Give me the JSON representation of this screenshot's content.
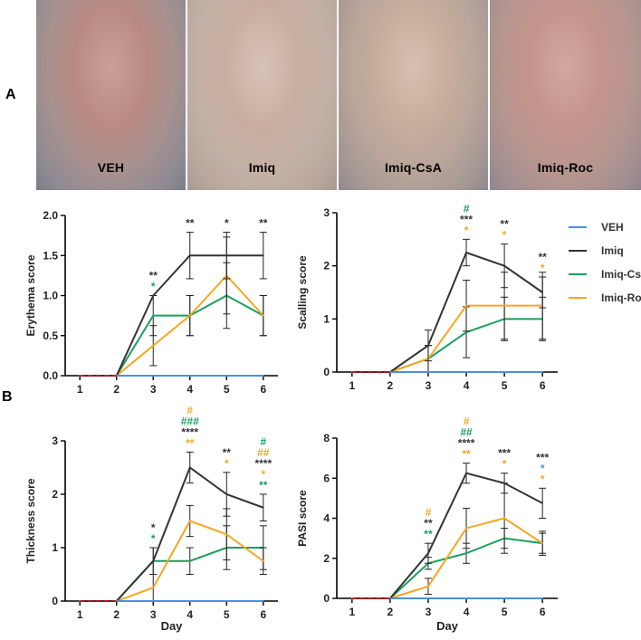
{
  "panel_labels": {
    "a": "A",
    "b": "B"
  },
  "photos": [
    {
      "caption": "VEH"
    },
    {
      "caption": "Imiq"
    },
    {
      "caption": "Imiq-CsA"
    },
    {
      "caption": "Imiq-Roc"
    }
  ],
  "legend": [
    {
      "name": "VEH",
      "color": "#4a90e2"
    },
    {
      "name": "Imiq",
      "color": "#333333"
    },
    {
      "name": "Imiq-CsA",
      "color": "#19a05a"
    },
    {
      "name": "Imiq-Roc",
      "color": "#f5a623"
    }
  ],
  "chart_data": [
    {
      "id": "erythema",
      "type": "line",
      "title": "",
      "xlabel": "",
      "ylabel": "Erythema score",
      "x": [
        1,
        2,
        3,
        4,
        5,
        6
      ],
      "xticks": [
        "1",
        "2",
        "3",
        "4",
        "5",
        "6"
      ],
      "ylim": [
        0,
        2.0
      ],
      "yticks": [
        "0.0",
        "0.5",
        "1.0",
        "1.5",
        "2.0"
      ],
      "series": [
        {
          "name": "VEH",
          "values": [
            0,
            0,
            0,
            0,
            0,
            0
          ],
          "err": [
            0,
            0,
            0,
            0,
            0,
            0
          ]
        },
        {
          "name": "Imiq",
          "values": [
            0,
            0,
            1.0,
            1.5,
            1.5,
            1.5
          ],
          "err": [
            0,
            0,
            0,
            0.29,
            0.29,
            0.29
          ]
        },
        {
          "name": "Imiq-CsA",
          "values": [
            0,
            0,
            0.75,
            0.75,
            1.0,
            0.75
          ],
          "err": [
            0,
            0,
            0.25,
            0.25,
            0.41,
            0.25
          ]
        },
        {
          "name": "Imiq-Roc",
          "values": [
            0,
            0,
            0.375,
            0.75,
            1.25,
            0.75
          ],
          "err": [
            0,
            0,
            0.25,
            0.25,
            0.48,
            0.25
          ]
        }
      ],
      "annotations": [
        {
          "x": 3,
          "lines": [
            {
              "text": "**",
              "color": "#333333"
            },
            {
              "text": "*",
              "color": "#19a05a"
            }
          ]
        },
        {
          "x": 4,
          "lines": [
            {
              "text": "**",
              "color": "#333333"
            }
          ]
        },
        {
          "x": 5,
          "lines": [
            {
              "text": "*",
              "color": "#333333"
            }
          ]
        },
        {
          "x": 6,
          "lines": [
            {
              "text": "**",
              "color": "#333333"
            }
          ]
        }
      ]
    },
    {
      "id": "scalling",
      "type": "line",
      "title": "",
      "xlabel": "",
      "ylabel": "Scalling score",
      "x": [
        1,
        2,
        3,
        4,
        5,
        6
      ],
      "xticks": [
        "1",
        "2",
        "3",
        "4",
        "5",
        "6"
      ],
      "ylim": [
        0,
        3
      ],
      "yticks": [
        "0",
        "1",
        "2",
        "3"
      ],
      "series": [
        {
          "name": "VEH",
          "values": [
            0,
            0,
            0,
            0,
            0,
            0
          ],
          "err": [
            0,
            0,
            0,
            0,
            0,
            0
          ]
        },
        {
          "name": "Imiq",
          "values": [
            0,
            0,
            0.5,
            2.25,
            2.0,
            1.5
          ],
          "err": [
            0,
            0,
            0.29,
            0.25,
            0.41,
            0.29
          ]
        },
        {
          "name": "Imiq-CsA",
          "values": [
            0,
            0,
            0.25,
            0.75,
            1.0,
            1.0
          ],
          "err": [
            0,
            0,
            0.25,
            0.48,
            0.41,
            0.41
          ]
        },
        {
          "name": "Imiq-Roc",
          "values": [
            0,
            0,
            0.25,
            1.25,
            1.25,
            1.25
          ],
          "err": [
            0,
            0,
            0.25,
            0.48,
            0.63,
            0.63
          ]
        }
      ],
      "annotations": [
        {
          "x": 4,
          "lines": [
            {
              "text": "#",
              "color": "#19a05a"
            },
            {
              "text": "***",
              "color": "#333333"
            },
            {
              "text": "*",
              "color": "#f5a623"
            }
          ]
        },
        {
          "x": 5,
          "lines": [
            {
              "text": "**",
              "color": "#333333"
            },
            {
              "text": "*",
              "color": "#f5a623"
            }
          ]
        },
        {
          "x": 6,
          "lines": [
            {
              "text": "**",
              "color": "#333333"
            },
            {
              "text": "*",
              "color": "#f5a623"
            }
          ]
        }
      ]
    },
    {
      "id": "thickness",
      "type": "line",
      "title": "",
      "xlabel": "Day",
      "ylabel": "Thickness score",
      "x": [
        1,
        2,
        3,
        4,
        5,
        6
      ],
      "xticks": [
        "1",
        "2",
        "3",
        "4",
        "5",
        "6"
      ],
      "ylim": [
        0,
        3
      ],
      "yticks": [
        "0",
        "1",
        "2",
        "3"
      ],
      "series": [
        {
          "name": "VEH",
          "values": [
            0,
            0,
            0,
            0,
            0,
            0
          ],
          "err": [
            0,
            0,
            0,
            0,
            0,
            0
          ]
        },
        {
          "name": "Imiq",
          "values": [
            0,
            0,
            0.75,
            2.5,
            2.0,
            1.75
          ],
          "err": [
            0,
            0,
            0.25,
            0.29,
            0.41,
            0.25
          ]
        },
        {
          "name": "Imiq-CsA",
          "values": [
            0,
            0,
            0.75,
            0.75,
            1.0,
            1.0
          ],
          "err": [
            0,
            0,
            0.25,
            0.25,
            0.41,
            0.41
          ]
        },
        {
          "name": "Imiq-Roc",
          "values": [
            0,
            0,
            0.25,
            1.5,
            1.25,
            0.75
          ],
          "err": [
            0,
            0,
            0.25,
            0.29,
            0.48,
            0.25
          ]
        }
      ],
      "annotations": [
        {
          "x": 3,
          "lines": [
            {
              "text": "*",
              "color": "#333333"
            },
            {
              "text": "*",
              "color": "#19a05a"
            }
          ]
        },
        {
          "x": 4,
          "lines": [
            {
              "text": "#",
              "color": "#f5a623"
            },
            {
              "text": "###",
              "color": "#19a05a"
            },
            {
              "text": "****",
              "color": "#333333"
            },
            {
              "text": "**",
              "color": "#f5a623"
            }
          ]
        },
        {
          "x": 5,
          "lines": [
            {
              "text": "**",
              "color": "#333333"
            },
            {
              "text": "*",
              "color": "#f5a623"
            }
          ]
        },
        {
          "x": 6,
          "lines": [
            {
              "text": "#",
              "color": "#19a05a"
            },
            {
              "text": "##",
              "color": "#f5a623"
            },
            {
              "text": "****",
              "color": "#333333"
            },
            {
              "text": "*",
              "color": "#f5a623"
            },
            {
              "text": "**",
              "color": "#19a05a"
            }
          ]
        }
      ]
    },
    {
      "id": "pasi",
      "type": "line",
      "title": "",
      "xlabel": "Day",
      "ylabel": "PASI score",
      "x": [
        1,
        2,
        3,
        4,
        5,
        6
      ],
      "xticks": [
        "1",
        "2",
        "3",
        "4",
        "5",
        "6"
      ],
      "ylim": [
        0,
        8
      ],
      "yticks": [
        "0",
        "2",
        "4",
        "6",
        "8"
      ],
      "series": [
        {
          "name": "VEH",
          "values": [
            0,
            0,
            0,
            0,
            0,
            0
          ],
          "err": [
            0,
            0,
            0,
            0,
            0,
            0
          ]
        },
        {
          "name": "Imiq",
          "values": [
            0,
            0,
            2.25,
            6.25,
            5.75,
            4.75
          ],
          "err": [
            0,
            0,
            0.5,
            0.5,
            0.5,
            0.75
          ]
        },
        {
          "name": "Imiq-CsA",
          "values": [
            0,
            0,
            1.75,
            2.25,
            3.0,
            2.75
          ],
          "err": [
            0,
            0,
            0.3,
            0.5,
            0.5,
            0.5
          ]
        },
        {
          "name": "Imiq-Roc",
          "values": [
            0,
            0,
            0.6,
            3.5,
            4.0,
            2.75
          ],
          "err": [
            0,
            0,
            0.4,
            1.0,
            1.75,
            0.6
          ]
        }
      ],
      "annotations": [
        {
          "x": 3,
          "lines": [
            {
              "text": "#",
              "color": "#f5a623"
            },
            {
              "text": "**",
              "color": "#333333"
            },
            {
              "text": "**",
              "color": "#19a05a"
            }
          ]
        },
        {
          "x": 4,
          "lines": [
            {
              "text": "#",
              "color": "#f5a623"
            },
            {
              "text": "##",
              "color": "#19a05a"
            },
            {
              "text": "****",
              "color": "#333333"
            },
            {
              "text": "**",
              "color": "#f5a623"
            }
          ]
        },
        {
          "x": 5,
          "lines": [
            {
              "text": "***",
              "color": "#333333"
            },
            {
              "text": "*",
              "color": "#f5a623"
            }
          ]
        },
        {
          "x": 6,
          "lines": [
            {
              "text": "***",
              "color": "#333333"
            },
            {
              "text": "*",
              "color": "#4a90e2"
            },
            {
              "text": "*",
              "color": "#f5a623"
            }
          ]
        }
      ]
    }
  ]
}
